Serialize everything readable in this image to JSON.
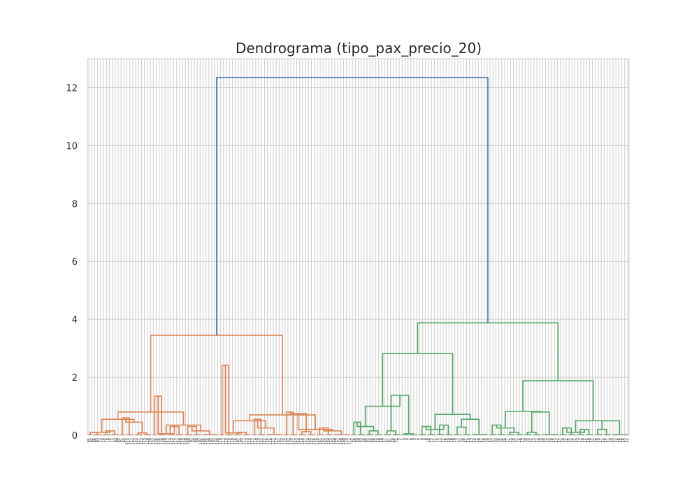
{
  "chart_data": {
    "type": "dendrogram",
    "title": "Dendrograma (tipo_pax_precio_20)",
    "xlabel": "",
    "ylabel": "",
    "ylim": [
      0,
      13
    ],
    "y_ticks": [
      "0",
      "2",
      "4",
      "6",
      "8",
      "10",
      "12"
    ],
    "grid": true,
    "leaf_count": 185,
    "colors": {
      "cluster_1": "#dd8452",
      "cluster_2": "#55a868",
      "above_threshold": "#4c72b0",
      "grid": "#cccccc"
    },
    "root": {
      "height": 12.35,
      "color": "above_threshold"
    },
    "clusters": [
      {
        "name": "",
        "color": "cluster_1",
        "height": 3.45,
        "merges": [
          0.8,
          0.7,
          0.55,
          0.5,
          0.35,
          0.2,
          0.1,
          0.08,
          0.05,
          0.75,
          0.45,
          0.25,
          0.15,
          0.15,
          0.1,
          2.42,
          1.35,
          0.8,
          0.6,
          0.55,
          0.3,
          0.25,
          0.15,
          0.1,
          0.3,
          0.12,
          0.08
        ],
        "leaf_labels": [
          "95",
          "92",
          "86",
          "83",
          "73",
          "74",
          "76",
          "78",
          "71",
          "83",
          "99",
          "91",
          "84",
          "144",
          "147",
          "152",
          "153",
          "157",
          "123",
          "125",
          "128",
          "130",
          "132",
          "134",
          "136",
          "138",
          "140",
          "142",
          "144",
          "145",
          "147",
          "148",
          "150",
          "158",
          "160",
          "97",
          "99",
          "86",
          "102",
          "104",
          "105",
          "108",
          "101",
          "103",
          "106",
          "110",
          "112",
          "114",
          "116",
          "118",
          "114",
          "107",
          "109",
          "111",
          "113",
          "115",
          "117",
          "119",
          "120",
          "121",
          "122",
          "124",
          "126",
          "127",
          "129",
          "131",
          "133",
          "135",
          "137",
          "139",
          "141",
          "143",
          "146",
          "149",
          "151",
          "154",
          "155",
          "156",
          "159",
          "161",
          "162",
          "163",
          "164",
          "165",
          "166",
          "167",
          "168",
          "169",
          "170",
          "171"
        ]
      },
      {
        "name": "",
        "color": "cluster_2",
        "height": 3.88,
        "merges": [
          2.82,
          1.88,
          1.0,
          0.82,
          0.72,
          0.5,
          0.3,
          0.25,
          0.2,
          0.1,
          1.38,
          0.8,
          0.55,
          0.5,
          0.45,
          0.35,
          0.3,
          0.25,
          0.15,
          0.1,
          0.28,
          0.2,
          0.15,
          0.1,
          0.35,
          0.2,
          0.05
        ],
        "leaf_labels": [
          "62",
          "69",
          "60",
          "63",
          "66",
          "65",
          "64",
          "56",
          "55",
          "59",
          "58",
          "57",
          "67",
          "61",
          "68",
          "51",
          "5",
          "1",
          "3",
          "4",
          "6",
          "0",
          "2",
          "7",
          "9",
          "8",
          "10",
          "15",
          "11",
          "14",
          "13",
          "12",
          "16",
          "20",
          "18",
          "19",
          "17",
          "32",
          "39",
          "41",
          "40",
          "43",
          "44",
          "46",
          "47",
          "48",
          "38",
          "42",
          "37",
          "33",
          "36",
          "34",
          "35",
          "27",
          "25",
          "28",
          "31",
          "26",
          "29",
          "30",
          "24",
          "22",
          "23",
          "21",
          "49",
          "50",
          "52",
          "53",
          "54",
          "45",
          "42",
          "47",
          "50",
          "52",
          "55",
          "44",
          "41",
          "43",
          "42",
          "49",
          "45",
          "48",
          "51",
          "46",
          "40",
          "41",
          "44",
          "47",
          "50",
          "43",
          "42",
          "48",
          "46",
          "45",
          "41"
        ]
      }
    ]
  }
}
